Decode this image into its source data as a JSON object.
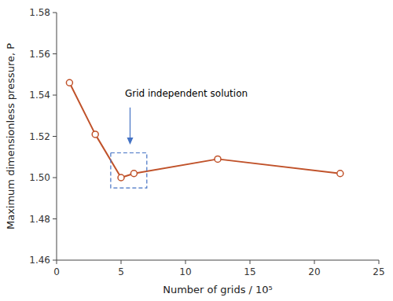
{
  "chart_data": {
    "type": "line",
    "x": [
      1,
      3,
      5,
      6,
      12.5,
      22
    ],
    "series": [
      {
        "values": [
          1.546,
          1.521,
          1.5,
          1.502,
          1.509,
          1.502
        ],
        "color": "#C0522A",
        "marker": "circle"
      }
    ],
    "xlabel": "Number of grids / 10⁵",
    "ylabel": "Maximum dimensionless pressure, P",
    "xlim": [
      0,
      25
    ],
    "ylim": [
      1.46,
      1.58
    ],
    "xticks": [
      0,
      5,
      10,
      15,
      20,
      25
    ],
    "yticks": [
      1.46,
      1.48,
      {
        "value": 1.5,
        "label": "1.50"
      },
      1.52,
      1.54,
      1.56,
      1.58
    ],
    "grid": false,
    "annotations": [
      {
        "text": "Grid independent solution",
        "x": 5.3,
        "y": 1.538,
        "arrow": {
          "from": [
            5.7,
            1.534
          ],
          "to": [
            5.7,
            1.516
          ],
          "color": "#4472C4"
        }
      }
    ],
    "shapes": [
      {
        "type": "rect",
        "x": 4.2,
        "y": 1.495,
        "width": 2.8,
        "height": 0.017,
        "color": "#4472C4",
        "line_style": "dashed"
      }
    ]
  }
}
